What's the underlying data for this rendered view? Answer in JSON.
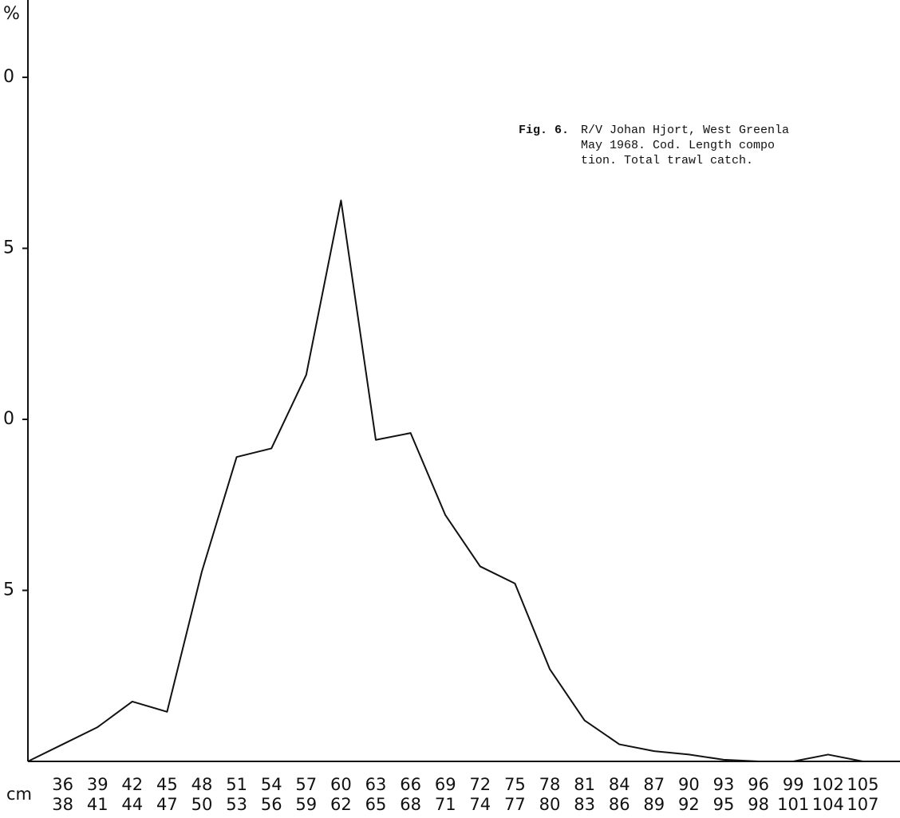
{
  "chart_data": {
    "type": "line",
    "ylabel": "%",
    "xlabel": "cm",
    "caption": {
      "label": "Fig. 6.",
      "lines": [
        "R/V Johan Hjort, West Greenla",
        "May 1968.  Cod.  Length compo",
        "tion.  Total trawl catch."
      ]
    },
    "categories": [
      null,
      "36",
      "39",
      "42",
      "45",
      "48",
      "51",
      "54",
      "57",
      "60",
      "63",
      "66",
      "69",
      "72",
      "75",
      "78",
      "81",
      "84",
      "87",
      "90",
      "93",
      "96",
      "99",
      "102",
      "105"
    ],
    "categories_to": [
      null,
      "38",
      "41",
      "44",
      "47",
      "50",
      "53",
      "56",
      "59",
      "62",
      "65",
      "68",
      "71",
      "74",
      "77",
      "80",
      "83",
      "86",
      "89",
      "92",
      "95",
      "98",
      "101",
      "104",
      "107"
    ],
    "values": [
      0,
      0.5,
      1.0,
      1.75,
      1.45,
      5.55,
      8.9,
      9.15,
      11.3,
      16.4,
      9.4,
      9.6,
      7.2,
      5.7,
      5.2,
      2.7,
      1.2,
      0.5,
      0.3,
      0.2,
      0.05,
      0,
      0,
      0.2,
      0
    ],
    "color": "#111111",
    "ylim": [
      0,
      22.26
    ],
    "yticks": [
      5,
      {
        "value": 10,
        "label": "0"
      },
      {
        "value": 15,
        "label": "5"
      },
      {
        "value": 20,
        "label": "0"
      }
    ]
  }
}
